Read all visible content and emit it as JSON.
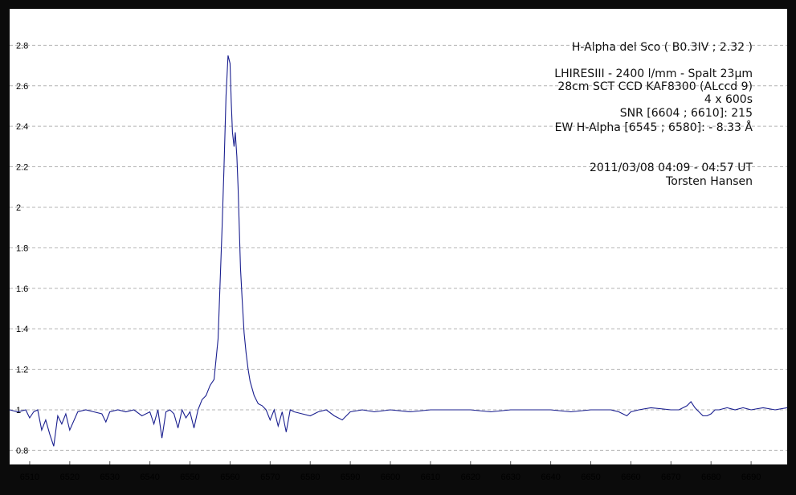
{
  "colors": {
    "frame": "#0b0b0b",
    "plot_background": "#ffffff",
    "grid": "#b4b4b4",
    "series_line": "#1a1f8f",
    "text": "#101010"
  },
  "info_lines": {
    "line1": "H-Alpha del Sco ( B0.3IV ; 2.32 )",
    "line2": "LHIRESIII - 2400 l/mm - Spalt 23µm",
    "line3": "28cm SCT   CCD KAF8300 (ALccd 9)",
    "line4": "4 x 600s",
    "line5": "SNR [6604 ; 6610]:   215",
    "line6": "EW H-Alpha [6545 ; 6580]:   - 8.33 Å",
    "line7": "2011/03/08   04:09 - 04:57 UT",
    "line8": "Torsten Hansen"
  },
  "chart_data": {
    "type": "line",
    "title": "",
    "xlabel": "",
    "ylabel": "",
    "xlim": [
      6505,
      6699
    ],
    "ylim": [
      0.73,
      2.98
    ],
    "grid": "horizontal dashed",
    "x_ticks": [
      6510,
      6520,
      6530,
      6540,
      6550,
      6560,
      6570,
      6580,
      6590,
      6600,
      6610,
      6620,
      6630,
      6640,
      6650,
      6660,
      6670,
      6680,
      6690
    ],
    "x_tick_labels": [
      "6510",
      "6520",
      "6530",
      "6540",
      "6550",
      "6560",
      "6570",
      "6580",
      "6590",
      "6600",
      "6610",
      "6620",
      "6630",
      "6640",
      "6650",
      "6660",
      "6670",
      "6680",
      "6690"
    ],
    "y_ticks": [
      0.8,
      1.0,
      1.2,
      1.4,
      1.6,
      1.8,
      2.0,
      2.2,
      2.4,
      2.6,
      2.8
    ],
    "y_tick_labels": [
      "0.8",
      "1",
      "1.2",
      "1.4",
      "1.6",
      "1.8",
      "2",
      "2.2",
      "2.4",
      "2.6",
      "2.8"
    ],
    "series": [
      {
        "x": [
          6505,
          6507,
          6509,
          6510,
          6511,
          6512,
          6513,
          6514,
          6515,
          6516,
          6517,
          6518,
          6519,
          6520,
          6522,
          6524,
          6526,
          6528,
          6529,
          6530,
          6532,
          6534,
          6536,
          6538,
          6540,
          6541,
          6542,
          6543,
          6544,
          6545,
          6546,
          6547,
          6548,
          6549,
          6550,
          6551,
          6552,
          6553,
          6554,
          6555,
          6556,
          6557,
          6558,
          6558.5,
          6559,
          6559.5,
          6560,
          6560.3,
          6560.6,
          6561,
          6561.3,
          6561.7,
          6562,
          6562.3,
          6562.6,
          6563,
          6563.5,
          6564,
          6564.5,
          6565,
          6566,
          6567,
          6568,
          6569,
          6570,
          6571,
          6572,
          6573,
          6574,
          6575,
          6576,
          6578,
          6580,
          6582,
          6584,
          6586,
          6588,
          6590,
          6593,
          6596,
          6600,
          6605,
          6610,
          6615,
          6620,
          6625,
          6630,
          6635,
          6640,
          6645,
          6650,
          6655,
          6657,
          6658,
          6659,
          6660,
          6662,
          6665,
          6670,
          6672,
          6674,
          6675,
          6676,
          6677,
          6678,
          6679,
          6680,
          6681,
          6682,
          6684,
          6686,
          6688,
          6690,
          6693,
          6696,
          6699
        ],
        "y": [
          1.0,
          0.99,
          1.0,
          0.96,
          0.99,
          1.0,
          0.9,
          0.95,
          0.88,
          0.82,
          0.97,
          0.93,
          0.98,
          0.9,
          0.99,
          1.0,
          0.99,
          0.98,
          0.94,
          0.99,
          1.0,
          0.99,
          1.0,
          0.97,
          0.99,
          0.93,
          1.0,
          0.86,
          0.99,
          1.0,
          0.98,
          0.91,
          1.0,
          0.96,
          0.99,
          0.91,
          1.0,
          1.05,
          1.07,
          1.12,
          1.15,
          1.35,
          1.9,
          2.2,
          2.55,
          2.75,
          2.71,
          2.52,
          2.37,
          2.3,
          2.37,
          2.25,
          2.1,
          1.9,
          1.7,
          1.55,
          1.38,
          1.28,
          1.2,
          1.14,
          1.07,
          1.03,
          1.02,
          1.0,
          0.95,
          1.0,
          0.92,
          0.99,
          0.89,
          1.0,
          0.99,
          0.98,
          0.97,
          0.99,
          1.0,
          0.97,
          0.95,
          0.99,
          1.0,
          0.99,
          1.0,
          0.99,
          1.0,
          1.0,
          1.0,
          0.99,
          1.0,
          1.0,
          1.0,
          0.99,
          1.0,
          1.0,
          0.99,
          0.98,
          0.97,
          0.99,
          1.0,
          1.01,
          1.0,
          1.0,
          1.02,
          1.04,
          1.01,
          0.99,
          0.97,
          0.97,
          0.98,
          1.0,
          1.0,
          1.01,
          1.0,
          1.01,
          1.0,
          1.01,
          1.0,
          1.01
        ]
      }
    ]
  }
}
